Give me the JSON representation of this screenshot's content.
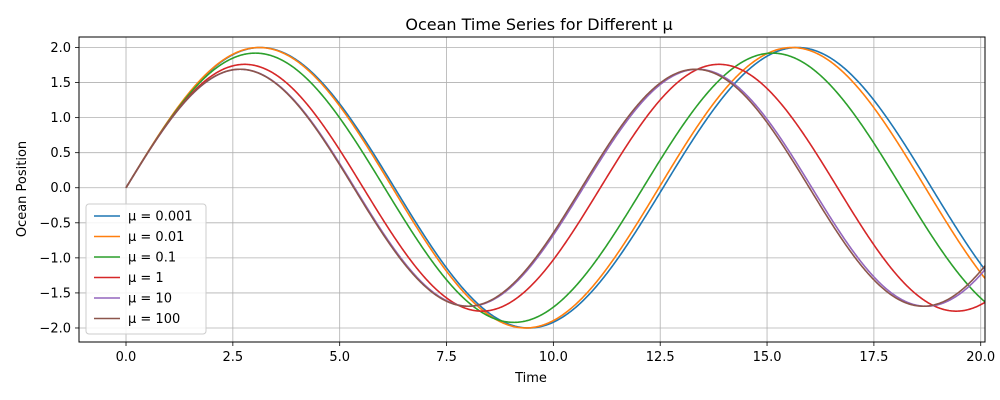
{
  "chart_data": {
    "type": "line",
    "title": "Ocean Time Series for Different μ",
    "xlabel": "Time",
    "ylabel": "Ocean Position",
    "xlim": [
      -1.1,
      20.1
    ],
    "ylim": [
      -2.2,
      2.15
    ],
    "xticks": [
      0.0,
      2.5,
      5.0,
      7.5,
      10.0,
      12.5,
      15.0,
      17.5,
      20.0
    ],
    "xtick_labels": [
      "0.0",
      "2.5",
      "5.0",
      "7.5",
      "10.0",
      "12.5",
      "15.0",
      "17.5",
      "20.0"
    ],
    "yticks": [
      -2.0,
      -1.5,
      -1.0,
      -0.5,
      0.0,
      0.5,
      1.0,
      1.5,
      2.0
    ],
    "ytick_labels": [
      "−2.0",
      "−1.5",
      "−1.0",
      "−0.5",
      "0.0",
      "0.5",
      "1.0",
      "1.5",
      "2.0"
    ],
    "grid": true,
    "legend_position": "lower-left",
    "series": [
      {
        "name": "μ = 0.001",
        "color": "#1f77b4",
        "amplitude": 2.0,
        "period": 12.566
      },
      {
        "name": "μ = 0.01",
        "color": "#ff7f0e",
        "amplitude": 2.0,
        "period": 12.47
      },
      {
        "name": "μ = 0.1",
        "color": "#2ca02c",
        "amplitude": 1.92,
        "period": 12.1
      },
      {
        "name": "μ = 1",
        "color": "#d62728",
        "amplitude": 1.76,
        "period": 11.1
      },
      {
        "name": "μ = 10",
        "color": "#9467bd",
        "amplitude": 1.69,
        "period": 10.7
      },
      {
        "name": "μ = 100",
        "color": "#8c564b",
        "amplitude": 1.69,
        "period": 10.66
      }
    ]
  }
}
